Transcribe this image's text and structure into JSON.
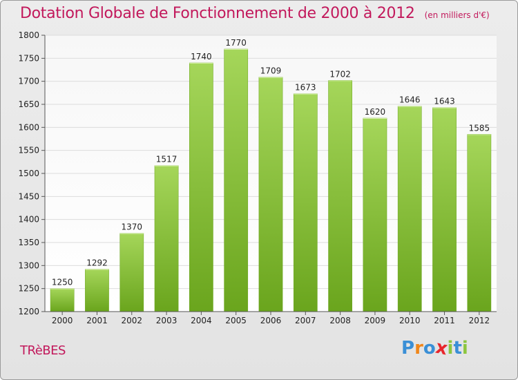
{
  "title": "Dotation Globale de Fonctionnement de 2000 à 2012",
  "subtitle": "(en milliers d'€)",
  "commune": "TRèBES",
  "logo": {
    "letters": [
      "P",
      "r",
      "o",
      "x",
      "i",
      "t",
      "i"
    ],
    "colors": [
      "#3a8fd6",
      "#f0861a",
      "#3a8fd6",
      "#e8262c",
      "#8cc63f",
      "#3a8fd6",
      "#8cc63f"
    ]
  },
  "colors": {
    "bar_top": "#a5d65a",
    "bar_bottom": "#6aa51d",
    "title": "#c2185b"
  },
  "chart_data": {
    "type": "bar",
    "categories": [
      "2000",
      "2001",
      "2002",
      "2003",
      "2004",
      "2005",
      "2006",
      "2007",
      "2008",
      "2009",
      "2010",
      "2011",
      "2012"
    ],
    "values": [
      1250,
      1292,
      1370,
      1517,
      1740,
      1770,
      1709,
      1673,
      1702,
      1620,
      1646,
      1643,
      1585
    ],
    "yticks": [
      "1200",
      "1250",
      "1300",
      "1350",
      "1400",
      "1450",
      "1500",
      "1550",
      "1600",
      "1650",
      "1700",
      "1750",
      "1800"
    ],
    "ylim": [
      1200,
      1800
    ],
    "grid": true
  }
}
